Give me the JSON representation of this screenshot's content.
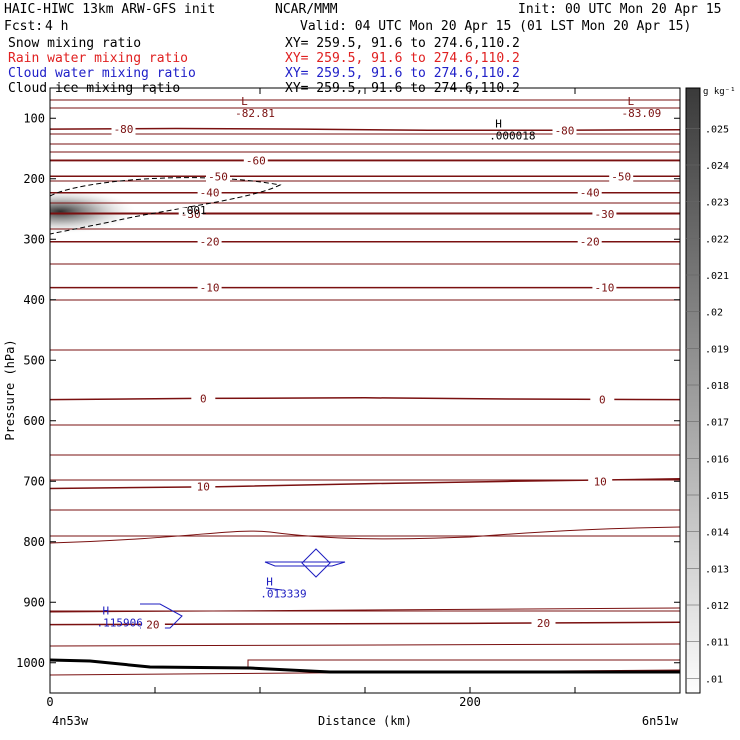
{
  "header": {
    "model": "HAIC-HIWC 13km ARW-GFS init",
    "org": "NCAR/MMM",
    "init": "Init: 00 UTC Mon 20 Apr 15",
    "fcst_label": "Fcst:",
    "fcst_value": "4 h",
    "valid": "Valid: 04 UTC Mon 20 Apr 15 (01 LST Mon 20 Apr 15)"
  },
  "fields": [
    {
      "name": "Snow mixing ratio",
      "xy": "XY= 259.5, 91.6 to 274.6,110.2",
      "color": "#000000"
    },
    {
      "name": "Rain water mixing ratio",
      "xy": "XY= 259.5, 91.6 to 274.6,110.2",
      "color": "#e02020"
    },
    {
      "name": "Cloud water mixing ratio",
      "xy": "XY= 259.5, 91.6 to 274.6,110.2",
      "color": "#2020c8"
    },
    {
      "name": "Cloud ice mixing ratio",
      "xy": "XY= 259.5, 91.6 to 274.6,110.2",
      "color": "#000000"
    }
  ],
  "colors": {
    "temperature": "#7a1010",
    "cloud_water": "#1c1cc0",
    "terrain": "#000000",
    "shade": "#333333"
  },
  "chart_data": {
    "type": "cross-section",
    "ylabel": "Pressure (hPa)",
    "xlabel": "Distance (km)",
    "x_range": [
      0,
      300
    ],
    "y_range": [
      1050,
      50
    ],
    "x_ticks": [
      0,
      200
    ],
    "x_minor_ticks": [
      0,
      50,
      100,
      150,
      200,
      250,
      300
    ],
    "y_ticks": [
      100,
      200,
      300,
      400,
      500,
      600,
      700,
      800,
      900,
      1000
    ],
    "left_endpoint": "4n53w",
    "right_endpoint": "6n51w",
    "colorbar": {
      "unit": "g kg⁻¹",
      "levels": [
        ".025",
        ".024",
        ".023",
        ".022",
        ".021",
        ".02",
        ".019",
        ".018",
        ".017",
        ".016",
        ".015",
        ".014",
        ".013",
        ".012",
        ".011",
        ".01"
      ]
    },
    "temperature_contours": [
      {
        "label": "-80",
        "label_at": [
          [
            35,
            118
          ],
          [
            245,
            120
          ]
        ],
        "points": [
          [
            0,
            118
          ],
          [
            60,
            117
          ],
          [
            120,
            118
          ],
          [
            180,
            120
          ],
          [
            240,
            120
          ],
          [
            300,
            119
          ]
        ]
      },
      {
        "label": "-60",
        "label_at": [
          [
            98,
            170
          ]
        ],
        "points": [
          [
            0,
            170
          ],
          [
            100,
            170
          ],
          [
            200,
            170
          ],
          [
            300,
            170
          ]
        ]
      },
      {
        "label": "-50",
        "label_at": [
          [
            80,
            196
          ],
          [
            272,
            196
          ]
        ],
        "points": [
          [
            0,
            196
          ],
          [
            100,
            196
          ],
          [
            200,
            196
          ],
          [
            300,
            196
          ]
        ]
      },
      {
        "label": "-40",
        "label_at": [
          [
            76,
            223
          ],
          [
            257,
            223
          ]
        ],
        "points": [
          [
            0,
            223
          ],
          [
            100,
            223
          ],
          [
            200,
            223
          ],
          [
            300,
            223
          ]
        ]
      },
      {
        "label": "-30",
        "label_at": [
          [
            67,
            258
          ],
          [
            264,
            258
          ]
        ],
        "points": [
          [
            0,
            258
          ],
          [
            100,
            258
          ],
          [
            200,
            258
          ],
          [
            300,
            258
          ]
        ]
      },
      {
        "label": "-20",
        "label_at": [
          [
            76,
            304
          ],
          [
            257,
            304
          ]
        ],
        "points": [
          [
            0,
            304
          ],
          [
            100,
            304
          ],
          [
            200,
            304
          ],
          [
            300,
            304
          ]
        ]
      },
      {
        "label": "-10",
        "label_at": [
          [
            76,
            380
          ],
          [
            264,
            380
          ]
        ],
        "points": [
          [
            0,
            380
          ],
          [
            100,
            380
          ],
          [
            200,
            380
          ],
          [
            300,
            380
          ]
        ]
      },
      {
        "label": "0",
        "label_at": [
          [
            73,
            563
          ],
          [
            263,
            565
          ]
        ],
        "points": [
          [
            0,
            565
          ],
          [
            70,
            563
          ],
          [
            150,
            562
          ],
          [
            220,
            564
          ],
          [
            300,
            565
          ]
        ]
      },
      {
        "label": "10",
        "label_at": [
          [
            73,
            709
          ],
          [
            262,
            700
          ]
        ],
        "points": [
          [
            0,
            712
          ],
          [
            80,
            709
          ],
          [
            150,
            704
          ],
          [
            220,
            700
          ],
          [
            300,
            696
          ]
        ]
      },
      {
        "label": "20",
        "label_at": [
          [
            49,
            937
          ],
          [
            235,
            934
          ]
        ],
        "points": [
          [
            0,
            937
          ],
          [
            100,
            936
          ],
          [
            200,
            935
          ],
          [
            300,
            933
          ]
        ]
      }
    ],
    "extrema": [
      {
        "type": "L",
        "value": "-82.81",
        "at": [
          91,
          78
        ]
      },
      {
        "type": "L",
        "value": "-83.09",
        "at": [
          275,
          78
        ]
      },
      {
        "type": "H",
        "value": ".000018",
        "at": [
          212,
          115
        ]
      },
      {
        "type": "H",
        "value": ".013339",
        "at": [
          103,
          872
        ]
      },
      {
        "type": "H",
        "value": ".115906",
        "at": [
          25,
          920
        ]
      }
    ],
    "cloud_ice": {
      "contour_label": ".001",
      "label_at": [
        62,
        252
      ]
    },
    "shaded_max": {
      "at": [
        5,
        254
      ]
    }
  }
}
